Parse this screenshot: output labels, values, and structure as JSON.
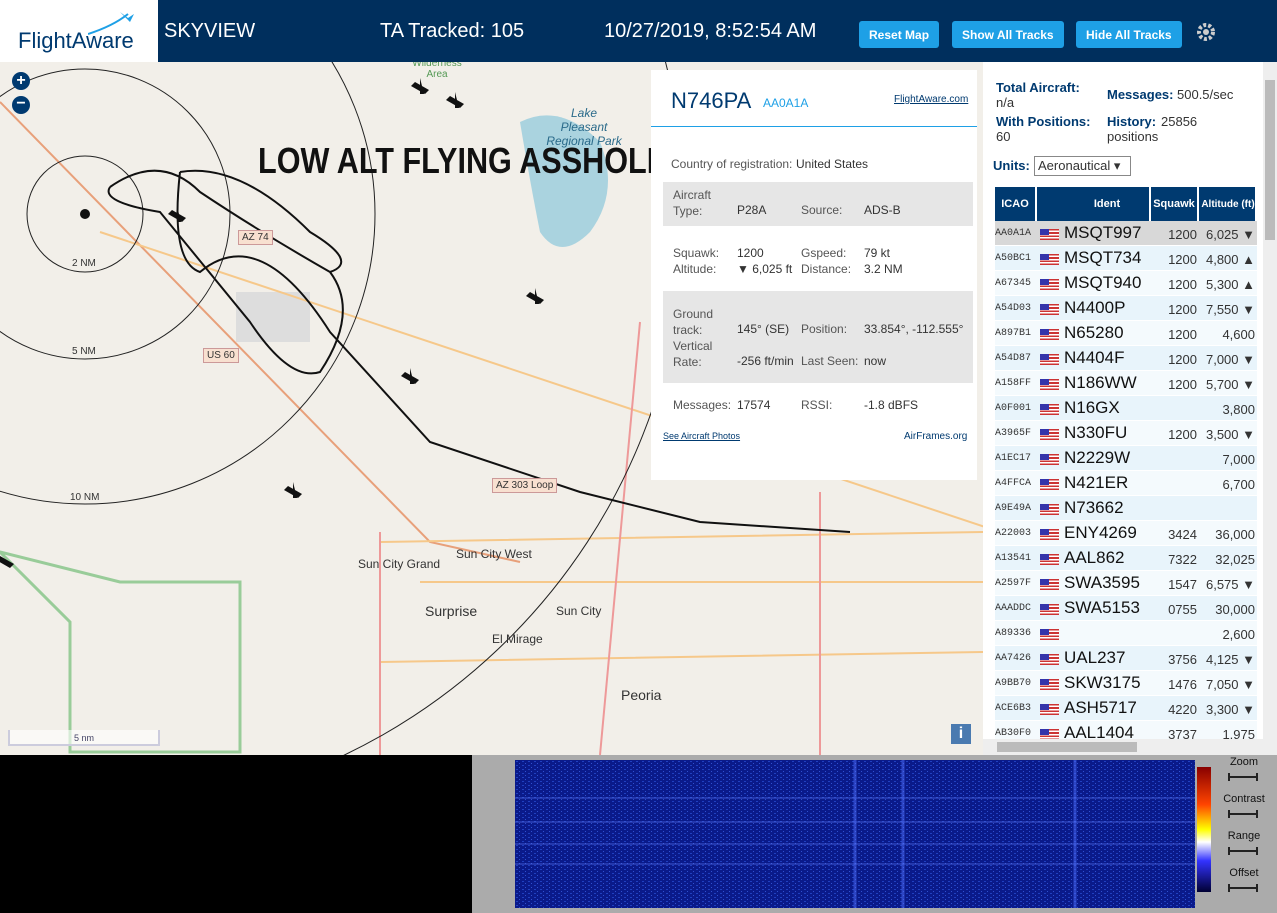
{
  "header": {
    "logo": "FlightAware",
    "app": "SKYVIEW",
    "tracked": "TA Tracked: 105",
    "datetime": "10/27/2019, 8:52:54 AM",
    "buttons": [
      "Reset Map",
      "Show All Tracks",
      "Hide All Tracks"
    ]
  },
  "map": {
    "annotation": "LOW ALT FLYING ASSHOLE",
    "rings": [
      "2 NM",
      "5 NM",
      "10 NM"
    ],
    "scale": "5 nm",
    "labels": [
      "Wilderness Area",
      "Lake Pleasant Regional Park",
      "AZ 74",
      "US 60",
      "AZ 303 Loop",
      "Sun City Grand",
      "Sun City West",
      "Surprise",
      "Sun City",
      "El Mirage",
      "Peoria"
    ]
  },
  "info": {
    "reg": "N746PA",
    "hex": "AA0A1A",
    "link": "FlightAware.com",
    "country_label": "Country of registration:",
    "country": "United States",
    "aircraft_type_label": "Aircraft Type:",
    "aircraft_type": "P28A",
    "source_label": "Source:",
    "source": "ADS-B",
    "squawk_label": "Squawk:",
    "squawk": "1200",
    "gspeed_label": "Gspeed:",
    "gspeed": "79 kt",
    "altitude_label": "Altitude:",
    "altitude": "▼ 6,025 ft",
    "distance_label": "Distance:",
    "distance": "3.2 NM",
    "track_label": "Ground track:",
    "track": "145° (SE)",
    "position_label": "Position:",
    "position": "33.854°, -112.555°",
    "vrate_label": "Vertical Rate:",
    "vrate": "-256 ft/min",
    "seen_label": "Last Seen:",
    "seen": "now",
    "messages_label": "Messages:",
    "messages": "17574",
    "rssi_label": "RSSI:",
    "rssi": "-1.8 dBFS",
    "photos": "See Aircraft Photos",
    "airframes": "AirFrames.org"
  },
  "stats": {
    "total_label": "Total Aircraft:",
    "total": "n/a",
    "msg_label": "Messages:",
    "msg": "500.5/sec",
    "pos_label": "With Positions:",
    "pos": "60",
    "history_label": "History:",
    "history": "25856 positions",
    "units_label": "Units:",
    "units": "Aeronautical"
  },
  "table": {
    "headers": [
      "ICAO",
      "Ident",
      "Squawk",
      "Altitude (ft)"
    ],
    "rows": [
      [
        "AA0A1A",
        "MSQT997",
        "1200",
        "6,025 ▼"
      ],
      [
        "A50BC1",
        "MSQT734",
        "1200",
        "4,800 ▲"
      ],
      [
        "A67345",
        "MSQT940",
        "1200",
        "5,300 ▲"
      ],
      [
        "A54D03",
        "N4400P",
        "1200",
        "7,550 ▼"
      ],
      [
        "A897B1",
        "N65280",
        "1200",
        "4,600"
      ],
      [
        "A54D87",
        "N4404F",
        "1200",
        "7,000 ▼"
      ],
      [
        "A158FF",
        "N186WW",
        "1200",
        "5,700 ▼"
      ],
      [
        "A0F001",
        "N16GX",
        "",
        "3,800"
      ],
      [
        "A3965F",
        "N330FU",
        "1200",
        "3,500 ▼"
      ],
      [
        "A1EC17",
        "N2229W",
        "",
        "7,000"
      ],
      [
        "A4FFCA",
        "N421ER",
        "",
        "6,700"
      ],
      [
        "A9E49A",
        "N73662",
        "",
        ""
      ],
      [
        "A22003",
        "ENY4269",
        "3424",
        "36,000"
      ],
      [
        "A13541",
        "AAL862",
        "7322",
        "32,025"
      ],
      [
        "A2597F",
        "SWA3595",
        "1547",
        "6,575 ▼"
      ],
      [
        "AAADDC",
        "SWA5153",
        "0755",
        "30,000"
      ],
      [
        "A89336",
        "",
        "",
        "2,600"
      ],
      [
        "AA7426",
        "UAL237",
        "3756",
        "4,125 ▼"
      ],
      [
        "A9BB70",
        "SKW3175",
        "1476",
        "7,050 ▼"
      ],
      [
        "ACE6B3",
        "ASH5717",
        "4220",
        "3,300 ▼"
      ],
      [
        "AB30F0",
        "AAL1404",
        "3737",
        "1,975"
      ]
    ]
  },
  "waterfall": {
    "controls": [
      "Zoom",
      "Contrast",
      "Range",
      "Offset"
    ]
  }
}
